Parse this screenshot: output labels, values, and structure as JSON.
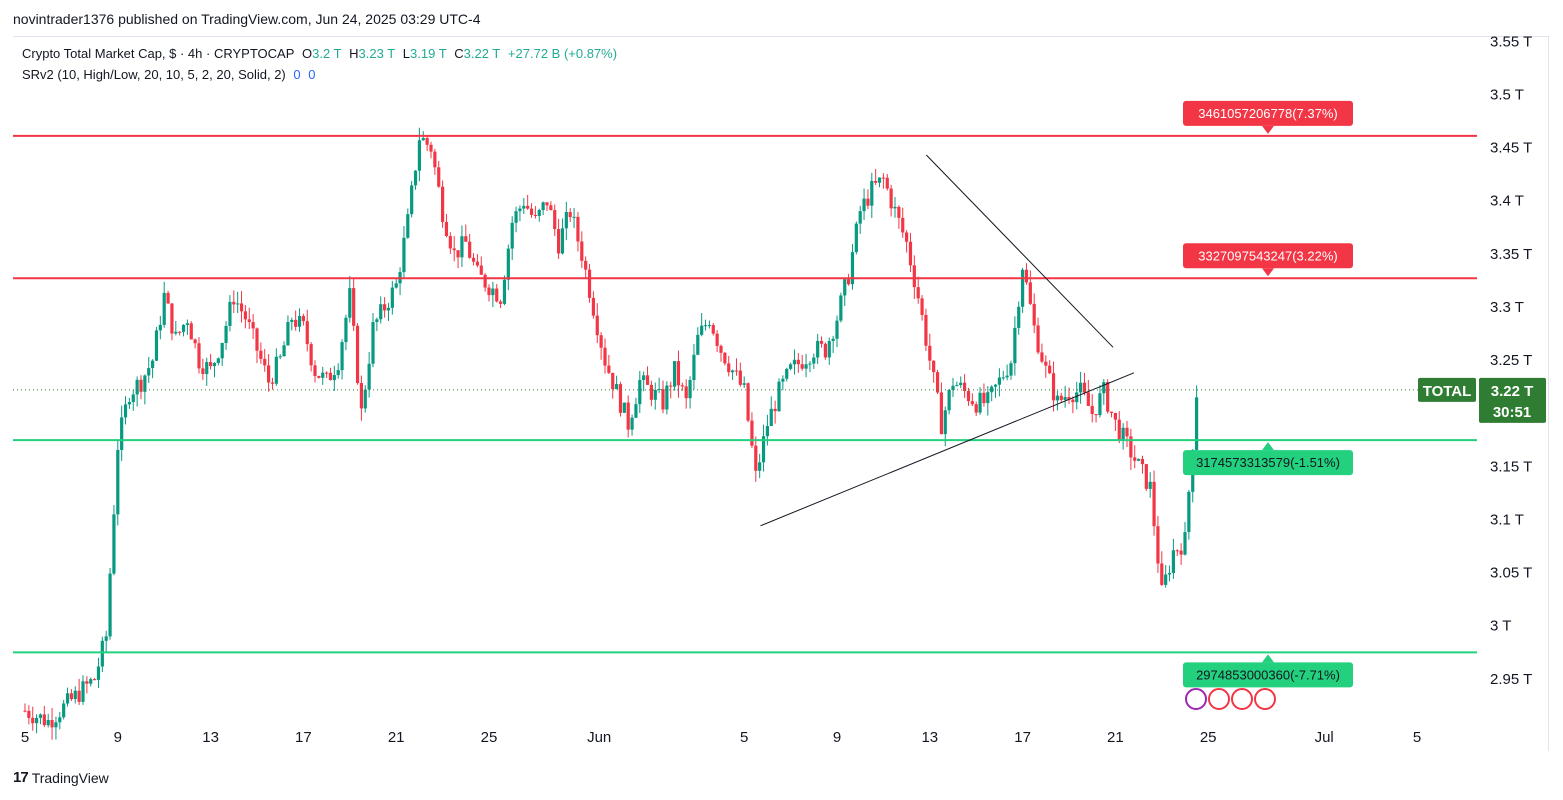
{
  "header": {
    "caption": "novintrader1376 published on TradingView.com, Jun 24, 2025 03:29 UTC-4"
  },
  "legend": {
    "symbol": "Crypto Total Market Cap, $ · 4h · CRYPTOCAP",
    "o_label": "O",
    "o_value": "3.2 T",
    "h_label": "H",
    "h_value": "3.23 T",
    "l_label": "L",
    "l_value": "3.19 T",
    "c_label": "C",
    "c_value": "3.22 T",
    "change": "+27.72 B (+0.87%)",
    "indicator": "SRv2 (10, High/Low, 20, 10, 5, 2, 20, Solid, 2)",
    "ind_v1": "0",
    "ind_v2": "0"
  },
  "footer": {
    "brand": "TradingView",
    "mark": "17"
  },
  "colors": {
    "up": "#26a69a_tv_green_#089981",
    "up_hex": "#089981",
    "down_hex": "#f23645",
    "resistance": "#f23645",
    "support": "#22d07d",
    "symbol_label_bg": "#2e7d32",
    "axis_text": "#131722"
  },
  "chart_data": {
    "type": "candlestick",
    "symbol": "TOTAL",
    "timeframe": "4h",
    "y_unit": "T",
    "ylim": [
      2.915,
      3.555
    ],
    "y_ticks": [
      "3.55 T",
      "3.5 T",
      "3.45 T",
      "3.4 T",
      "3.35 T",
      "3.3 T",
      "3.25 T",
      "3.2 T",
      "3.15 T",
      "3.1 T",
      "3.05 T",
      "3 T",
      "2.95 T"
    ],
    "y_tick_values": [
      3.55,
      3.5,
      3.45,
      3.4,
      3.35,
      3.3,
      3.25,
      3.2,
      3.15,
      3.1,
      3.05,
      3.0,
      2.95
    ],
    "x_ticks": [
      "5",
      "9",
      "13",
      "17",
      "21",
      "25",
      "Jun",
      "5",
      "9",
      "13",
      "17",
      "21",
      "25",
      "Jul",
      "5"
    ],
    "x_tick_days": [
      0,
      4,
      8,
      12,
      16,
      20,
      24.75,
      31,
      35,
      39,
      43,
      47,
      51,
      56,
      60
    ],
    "x_start": "May 5",
    "last_price": {
      "label": "TOTAL",
      "value": "3.22 T",
      "countdown": "30:51",
      "price": 3.222
    },
    "levels": [
      {
        "price": 3.461,
        "label": "3461057206778(7.37%)",
        "role": "resistance"
      },
      {
        "price": 3.327,
        "label": "3327097543247(3.22%)",
        "role": "resistance"
      },
      {
        "price": 3.1746,
        "label": "3174573313579(-1.51%)",
        "role": "support"
      },
      {
        "price": 2.9749,
        "label": "2974853000360(-7.71%)",
        "role": "support"
      }
    ],
    "trendlines": [
      {
        "from": [
          38.85,
          3.443
        ],
        "to": [
          46.9,
          3.262
        ],
        "description": "descending resistance"
      },
      {
        "from": [
          31.7,
          3.094
        ],
        "to": [
          47.8,
          3.238
        ],
        "description": "ascending support"
      }
    ],
    "closes": [
      [
        0,
        2.92
      ],
      [
        1,
        2.91
      ],
      [
        2,
        2.93
      ],
      [
        3,
        2.95
      ],
      [
        3.5,
        2.99
      ],
      [
        4,
        3.17
      ],
      [
        4.5,
        3.22
      ],
      [
        5,
        3.23
      ],
      [
        5.5,
        3.25
      ],
      [
        6,
        3.31
      ],
      [
        6.5,
        3.27
      ],
      [
        7,
        3.29
      ],
      [
        7.5,
        3.25
      ],
      [
        8,
        3.24
      ],
      [
        8.5,
        3.27
      ],
      [
        9,
        3.31
      ],
      [
        9.5,
        3.29
      ],
      [
        10,
        3.26
      ],
      [
        10.5,
        3.23
      ],
      [
        11,
        3.25
      ],
      [
        11.5,
        3.29
      ],
      [
        12,
        3.28
      ],
      [
        12.5,
        3.24
      ],
      [
        13,
        3.23
      ],
      [
        13.5,
        3.25
      ],
      [
        14,
        3.31
      ],
      [
        14.5,
        3.2
      ],
      [
        15,
        3.28
      ],
      [
        15.5,
        3.3
      ],
      [
        16,
        3.32
      ],
      [
        16.5,
        3.38
      ],
      [
        17,
        3.46
      ],
      [
        17.5,
        3.45
      ],
      [
        18,
        3.39
      ],
      [
        18.5,
        3.35
      ],
      [
        19,
        3.36
      ],
      [
        19.5,
        3.33
      ],
      [
        20,
        3.32
      ],
      [
        20.5,
        3.31
      ],
      [
        21,
        3.38
      ],
      [
        21.5,
        3.4
      ],
      [
        22,
        3.38
      ],
      [
        22.5,
        3.4
      ],
      [
        23,
        3.36
      ],
      [
        23.5,
        3.39
      ],
      [
        24,
        3.35
      ],
      [
        24.5,
        3.3
      ],
      [
        25,
        3.25
      ],
      [
        25.5,
        3.22
      ],
      [
        26,
        3.19
      ],
      [
        26.5,
        3.23
      ],
      [
        27,
        3.22
      ],
      [
        27.5,
        3.21
      ],
      [
        28,
        3.24
      ],
      [
        28.5,
        3.21
      ],
      [
        29,
        3.27
      ],
      [
        29.5,
        3.29
      ],
      [
        30,
        3.26
      ],
      [
        30.5,
        3.24
      ],
      [
        31,
        3.22
      ],
      [
        31.5,
        3.14
      ],
      [
        32,
        3.19
      ],
      [
        32.5,
        3.22
      ],
      [
        33,
        3.24
      ],
      [
        33.5,
        3.25
      ],
      [
        34,
        3.26
      ],
      [
        34.5,
        3.26
      ],
      [
        35,
        3.29
      ],
      [
        35.5,
        3.33
      ],
      [
        36,
        3.39
      ],
      [
        36.5,
        3.41
      ],
      [
        37,
        3.42
      ],
      [
        37.5,
        3.39
      ],
      [
        38,
        3.36
      ],
      [
        38.5,
        3.31
      ],
      [
        39,
        3.25
      ],
      [
        39.5,
        3.19
      ],
      [
        40,
        3.23
      ],
      [
        40.5,
        3.22
      ],
      [
        41,
        3.21
      ],
      [
        41.5,
        3.21
      ],
      [
        42,
        3.23
      ],
      [
        42.5,
        3.25
      ],
      [
        43,
        3.34
      ],
      [
        43.5,
        3.28
      ],
      [
        44,
        3.24
      ],
      [
        44.5,
        3.21
      ],
      [
        45,
        3.22
      ],
      [
        45.5,
        3.22
      ],
      [
        46,
        3.2
      ],
      [
        46.5,
        3.22
      ],
      [
        47,
        3.19
      ],
      [
        47.5,
        3.17
      ],
      [
        48,
        3.15
      ],
      [
        48.5,
        3.13
      ],
      [
        49,
        3.03
      ],
      [
        49.5,
        3.07
      ],
      [
        50,
        3.08
      ],
      [
        50.5,
        3.22
      ]
    ]
  }
}
